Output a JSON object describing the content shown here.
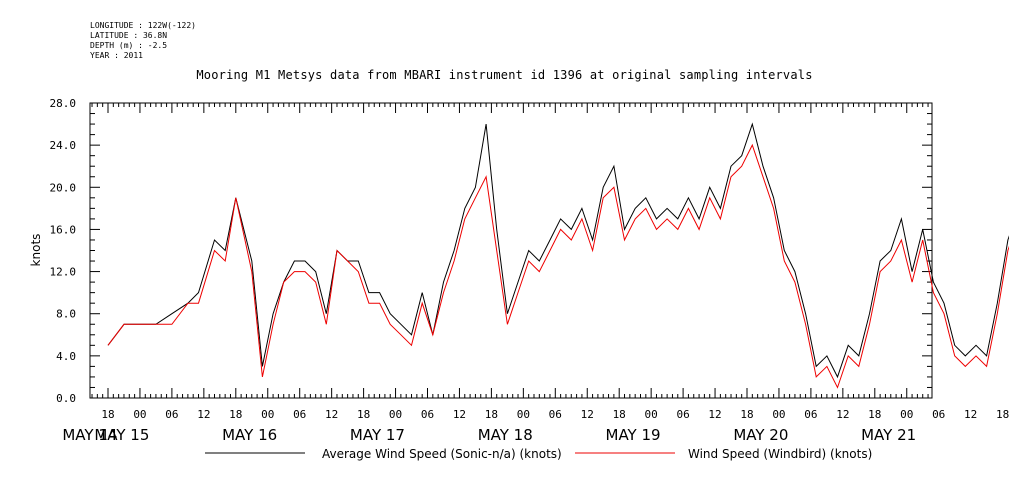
{
  "meta": {
    "longitude": "LONGITUDE : 122W(-122)",
    "latitude": "LATITUDE : 36.8N",
    "depth": "DEPTH (m) : -2.5",
    "year": "YEAR : 2011"
  },
  "chart_data": {
    "type": "line",
    "title": "Mooring M1 Metsys data from MBARI instrument id 1396 at original sampling intervals",
    "ylabel": "knots",
    "xlabel": "",
    "ylim": [
      0,
      28
    ],
    "xlim_hours": [
      0,
      181
    ],
    "y_ticks": [
      "0.0",
      "4.0",
      "8.0",
      "12.0",
      "16.0",
      "20.0",
      "24.0",
      "28.0"
    ],
    "hour_ticks": [
      "18",
      "00",
      "06",
      "12",
      "18",
      "00",
      "06",
      "12",
      "18",
      "00",
      "06",
      "12",
      "18",
      "00",
      "06",
      "12",
      "18",
      "00",
      "06",
      "12",
      "18",
      "00",
      "06",
      "12",
      "18",
      "00",
      "06",
      "12",
      "18",
      "00",
      "06",
      "12"
    ],
    "date_labels": [
      "MAY 14",
      "MAY 15",
      "MAY 16",
      "MAY 17",
      "MAY 18",
      "MAY 19",
      "MAY 20",
      "MAY 21"
    ],
    "grid": false,
    "legend_position": "bottom",
    "series": [
      {
        "name": "Average Wind Speed (Sonic-n/a) (knots)",
        "color": "#000000",
        "x_hours": [
          0,
          3,
          6,
          9,
          12,
          15,
          17,
          20,
          22,
          24,
          27,
          29,
          31,
          33,
          35,
          37,
          39,
          41,
          43,
          45,
          47,
          49,
          51,
          53,
          55,
          57,
          59,
          61,
          63,
          65,
          67,
          69,
          71,
          73,
          75,
          77,
          79,
          81,
          83,
          85,
          87,
          89,
          91,
          93,
          95,
          97,
          99,
          101,
          103,
          105,
          107,
          109,
          111,
          113,
          115,
          117,
          119,
          121,
          123,
          125,
          127,
          129,
          131,
          133,
          135,
          137,
          139,
          141,
          143,
          145,
          147,
          149,
          151,
          153,
          155,
          157,
          159,
          161,
          163,
          165,
          167,
          169,
          171,
          173,
          175,
          177,
          179,
          181
        ],
        "values": [
          5,
          7,
          7,
          7,
          8,
          9,
          10,
          15,
          14,
          19,
          13,
          3,
          8,
          11,
          13,
          13,
          12,
          8,
          14,
          13,
          13,
          10,
          10,
          8,
          7,
          6,
          10,
          6,
          11,
          14,
          18,
          20,
          26,
          16,
          8,
          11,
          14,
          13,
          15,
          17,
          16,
          18,
          15,
          20,
          22,
          16,
          18,
          19,
          17,
          18,
          17,
          19,
          17,
          20,
          18,
          22,
          23,
          26,
          22,
          19,
          14,
          12,
          8,
          3,
          4,
          2,
          5,
          4,
          8,
          13,
          14,
          17,
          12,
          16,
          11,
          9,
          5,
          4,
          5,
          4,
          9,
          15,
          18,
          21,
          24,
          20,
          15,
          11
        ]
      },
      {
        "name": "Wind Speed (Windbird) (knots)",
        "color": "#ee0000",
        "x_hours": [
          0,
          3,
          6,
          9,
          12,
          15,
          17,
          20,
          22,
          24,
          27,
          29,
          31,
          33,
          35,
          37,
          39,
          41,
          43,
          45,
          47,
          49,
          51,
          53,
          55,
          57,
          59,
          61,
          63,
          65,
          67,
          69,
          71,
          73,
          75,
          77,
          79,
          81,
          83,
          85,
          87,
          89,
          91,
          93,
          95,
          97,
          99,
          101,
          103,
          105,
          107,
          109,
          111,
          113,
          115,
          117,
          119,
          121,
          123,
          125,
          127,
          129,
          131,
          133,
          135,
          137,
          139,
          141,
          143,
          145,
          147,
          149,
          151,
          153,
          155,
          157,
          159,
          161,
          163,
          165,
          167,
          169,
          171,
          173,
          175,
          177,
          179,
          181
        ],
        "values": [
          5,
          7,
          7,
          7,
          7,
          9,
          9,
          14,
          13,
          19,
          12,
          2,
          7,
          11,
          12,
          12,
          11,
          7,
          14,
          13,
          12,
          9,
          9,
          7,
          6,
          5,
          9,
          6,
          10,
          13,
          17,
          19,
          21,
          14,
          7,
          10,
          13,
          12,
          14,
          16,
          15,
          17,
          14,
          19,
          20,
          15,
          17,
          18,
          16,
          17,
          16,
          18,
          16,
          19,
          17,
          21,
          22,
          24,
          21,
          18,
          13,
          11,
          7,
          2,
          3,
          1,
          4,
          3,
          7,
          12,
          13,
          15,
          11,
          15,
          10,
          8,
          4,
          3,
          4,
          3,
          8,
          14,
          17,
          19,
          21,
          19,
          14,
          10
        ]
      }
    ]
  }
}
